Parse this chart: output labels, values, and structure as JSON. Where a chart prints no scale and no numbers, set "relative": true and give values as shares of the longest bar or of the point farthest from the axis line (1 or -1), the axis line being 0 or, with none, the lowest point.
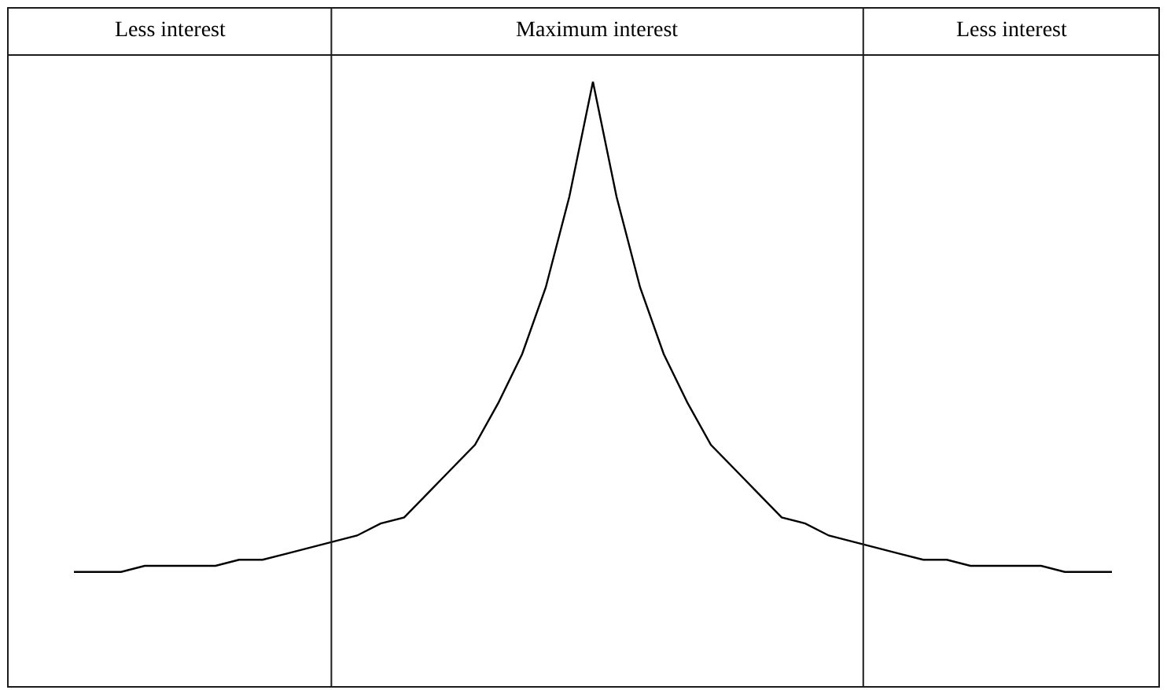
{
  "chart_data": {
    "type": "line",
    "relative": true,
    "color": "#000000",
    "categories": [
      null,
      null,
      null,
      null,
      null,
      null,
      null,
      null,
      null,
      null,
      null,
      null,
      null,
      null,
      null,
      null,
      null,
      null,
      null,
      null,
      null,
      null,
      null,
      null,
      null,
      null,
      null,
      null,
      null,
      null,
      null,
      null,
      null,
      null,
      null,
      null,
      null,
      null,
      null,
      null,
      null,
      null,
      null,
      null,
      null
    ],
    "values": [
      0.19,
      0.19,
      0.19,
      0.2,
      0.2,
      0.2,
      0.2,
      0.21,
      0.21,
      0.22,
      0.23,
      0.24,
      0.25,
      0.27,
      0.28,
      0.32,
      0.36,
      0.4,
      0.47,
      0.55,
      0.66,
      0.81,
      1.0,
      0.81,
      0.66,
      0.55,
      0.47,
      0.4,
      0.36,
      0.32,
      0.28,
      0.27,
      0.25,
      0.24,
      0.23,
      0.22,
      0.21,
      0.21,
      0.2,
      0.2,
      0.2,
      0.2,
      0.19,
      0.19,
      0.19
    ],
    "legend": false,
    "marker": "none",
    "line_style": "solid",
    "annotations": [
      "Less interest",
      "Maximum interest",
      "Less interest"
    ]
  }
}
